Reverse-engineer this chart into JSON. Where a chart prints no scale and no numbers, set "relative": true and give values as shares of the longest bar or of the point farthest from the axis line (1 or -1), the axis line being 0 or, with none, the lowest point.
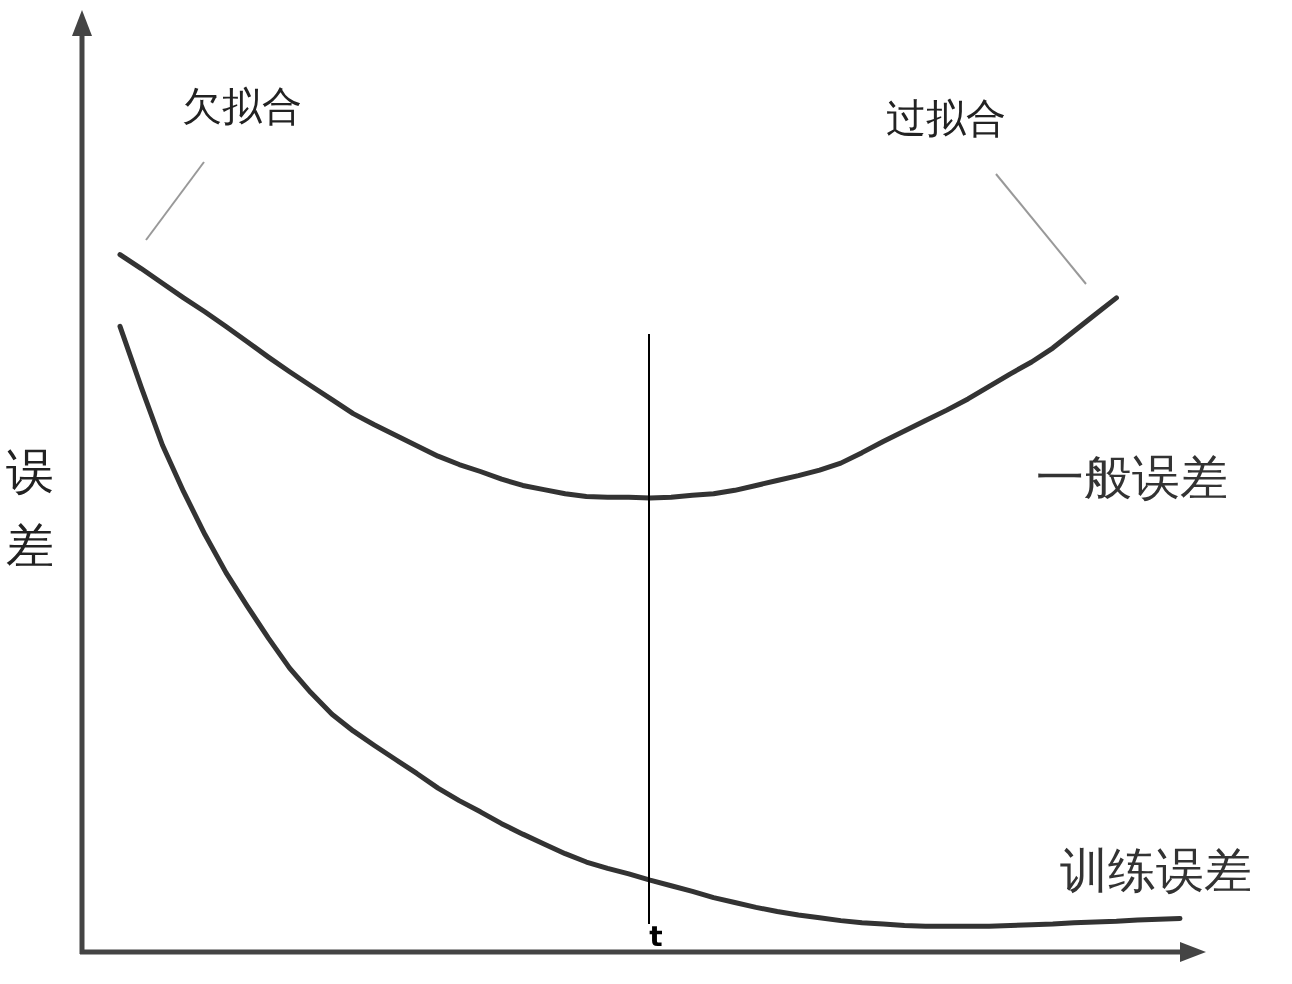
{
  "chart_data": {
    "type": "line",
    "relative": true,
    "ylabel": "误差",
    "categories": [
      null,
      null,
      null,
      null,
      null,
      null,
      null,
      null,
      null,
      null,
      null,
      null,
      null,
      null,
      null,
      null,
      null,
      null,
      null,
      null,
      null,
      null,
      null,
      null,
      null,
      null,
      null,
      null,
      null,
      null,
      null,
      null,
      null,
      null,
      null,
      null,
      null,
      null,
      null,
      null,
      null,
      null,
      null,
      null,
      null,
      null,
      null,
      null,
      null,
      null,
      null
    ],
    "series": [
      {
        "name": "一般误差",
        "color": "#333333",
        "values": [
          1.0,
          0.98,
          0.959,
          0.938,
          0.918,
          0.897,
          0.875,
          0.853,
          0.832,
          0.812,
          0.792,
          0.772,
          0.756,
          0.741,
          0.726,
          0.711,
          0.699,
          0.689,
          0.678,
          0.669,
          0.663,
          0.657,
          0.653,
          0.652,
          0.652,
          0.651,
          0.652,
          0.655,
          0.657,
          0.662,
          0.669,
          0.676,
          0.683,
          0.691,
          0.701,
          0.716,
          0.732,
          0.747,
          0.762,
          0.777,
          0.793,
          0.811,
          0.829,
          0.846,
          0.866,
          0.89,
          0.914,
          0.938,
          null,
          null,
          null
        ]
      },
      {
        "name": "训练误差",
        "color": "#333333",
        "values": [
          0.897,
          0.81,
          0.727,
          0.66,
          0.599,
          0.544,
          0.496,
          0.45,
          0.407,
          0.372,
          0.341,
          0.317,
          0.296,
          0.276,
          0.256,
          0.235,
          0.217,
          0.201,
          0.184,
          0.169,
          0.155,
          0.141,
          0.129,
          0.12,
          0.112,
          0.103,
          0.095,
          0.087,
          0.078,
          0.071,
          0.064,
          0.058,
          0.053,
          0.049,
          0.045,
          0.042,
          0.04,
          0.038,
          0.037,
          0.037,
          0.037,
          0.037,
          0.038,
          0.039,
          0.04,
          0.042,
          0.043,
          0.044,
          0.046,
          0.047,
          0.048
        ]
      }
    ],
    "annotations": [
      "欠拟合",
      "过拟合",
      "t"
    ],
    "line_style": "solid"
  }
}
